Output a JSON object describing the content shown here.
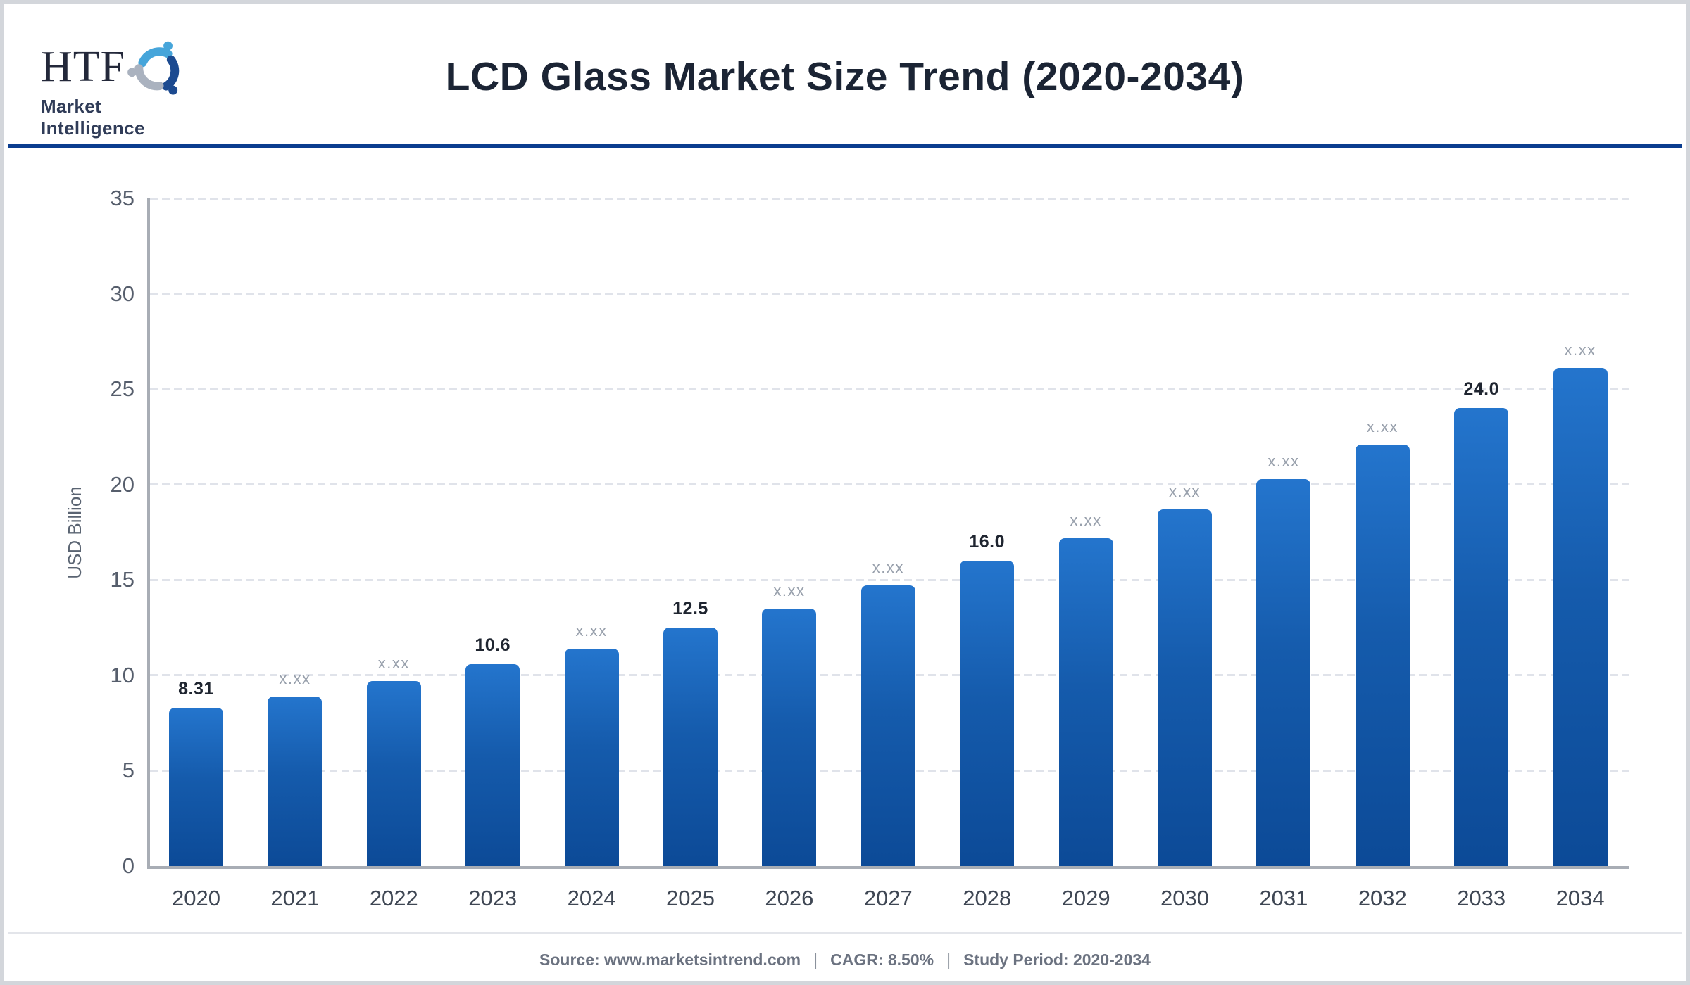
{
  "header": {
    "logo_text": "HTF",
    "logo_subtext": "Market Intelligence",
    "title": "LCD Glass Market Size Trend (2020-2034)"
  },
  "chart_data": {
    "type": "bar",
    "title": "LCD Glass Market Size Trend (2020-2034)",
    "categories": [
      "2020",
      "2021",
      "2022",
      "2023",
      "2024",
      "2025",
      "2026",
      "2027",
      "2028",
      "2029",
      "2030",
      "2031",
      "2032",
      "2033",
      "2034"
    ],
    "values": [
      8.31,
      8.9,
      9.7,
      10.6,
      11.4,
      12.5,
      13.5,
      14.7,
      16.0,
      17.2,
      18.7,
      20.3,
      22.1,
      24.0,
      26.1
    ],
    "bar_labels": [
      "8.31",
      "x.xx",
      "x.xx",
      "10.6",
      "x.xx",
      "12.5",
      "x.xx",
      "x.xx",
      "16.0",
      "x.xx",
      "x.xx",
      "x.xx",
      "x.xx",
      "24.0",
      "x.xx"
    ],
    "placeholder_label": "x.xx",
    "xlabel": "",
    "ylabel": "USD Billion",
    "ylim": [
      0,
      35
    ],
    "yticks": [
      0,
      5,
      10,
      15,
      20,
      25,
      30,
      35
    ],
    "grid": "horizontal-dashed",
    "legend_position": "none",
    "bar_gradient": {
      "top": "#2475cd",
      "bottom": "#0c4a97"
    }
  },
  "footer": {
    "source": "Source: www.marketsintrend.com",
    "pipe": "|",
    "cagr": "CAGR: 8.50%",
    "study_period": "Study Period: 2020-2034"
  },
  "colors": {
    "page_border": "#d3d6db",
    "header_rule": "#0a3d8f",
    "title_text": "#1b2434",
    "axis_line": "#a8adb5",
    "gridline": "#e0e3ea",
    "ytick_text": "#565e6c",
    "category_text": "#3f4754",
    "value_label_text": "#1f2530",
    "placeholder_label_text": "#98a0ac",
    "footer_text": "#6b7280",
    "logo_blue": "#46a5da",
    "logo_silver": "#aab2bf",
    "logo_navy": "#1c4a90"
  }
}
